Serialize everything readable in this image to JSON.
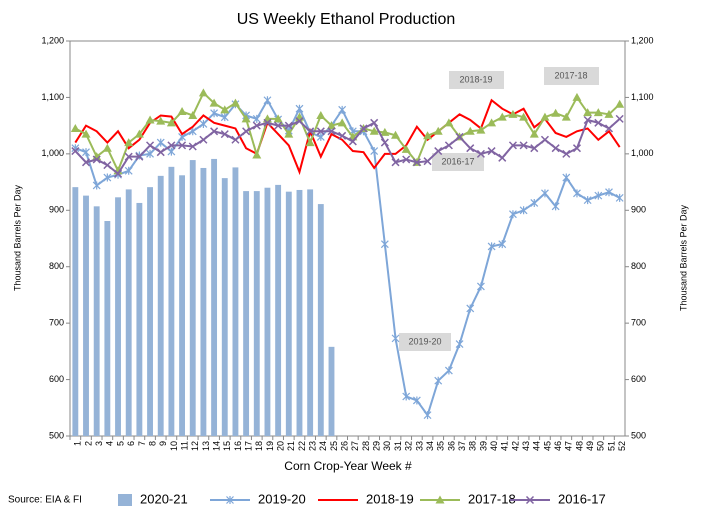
{
  "chart_data": {
    "type": "bar-line",
    "title": "US Weekly Ethanol Production",
    "xlabel": "Corn Crop-Year Week #",
    "ylabel": "Thousand Barrels Per Day",
    "y2label": "Thousand Barrels Per Day",
    "source": "Source: EIA & FI",
    "annotations": [
      "2018-19",
      "2017-18",
      "2016-17",
      "2019-20"
    ],
    "categories": [
      "1",
      "2",
      "3",
      "4",
      "5",
      "6",
      "7",
      "8",
      "9",
      "10",
      "11",
      "12",
      "13",
      "14",
      "15",
      "16",
      "17",
      "18",
      "19",
      "20",
      "21",
      "22",
      "23",
      "24",
      "25",
      "26",
      "27",
      "28",
      "29",
      "30",
      "31",
      "32",
      "33",
      "34",
      "35",
      "36",
      "37",
      "38",
      "39",
      "40",
      "41",
      "42",
      "43",
      "44",
      "45",
      "46",
      "47",
      "48",
      "49",
      "50",
      "51",
      "52"
    ],
    "ylim": [
      500,
      1200
    ],
    "yticks": [
      500,
      600,
      700,
      800,
      900,
      {
        "value": 1000,
        "label": "1,000"
      },
      {
        "value": 1100,
        "label": "1,100"
      },
      {
        "value": 1200,
        "label": "1,200"
      }
    ],
    "y2lim": [
      500,
      1200
    ],
    "y2ticks": [
      500,
      600,
      700,
      800,
      900,
      {
        "value": 1000,
        "label": "1,000"
      },
      {
        "value": 1100,
        "label": "1,100"
      },
      {
        "value": 1200,
        "label": "1,200"
      }
    ],
    "grid": false,
    "series": [
      {
        "name": "2020-21",
        "type": "bar",
        "color": "#95b3d7",
        "values": [
          941,
          926,
          907,
          881,
          923,
          937,
          913,
          941,
          961,
          977,
          962,
          989,
          975,
          991,
          957,
          976,
          934,
          934,
          940,
          945,
          933,
          936,
          937,
          911,
          658,
          null,
          null,
          null,
          null,
          null,
          null,
          null,
          null,
          null,
          null,
          null,
          null,
          null,
          null,
          null,
          null,
          null,
          null,
          null,
          null,
          null,
          null,
          null,
          null,
          null,
          null,
          null
        ]
      },
      {
        "name": "2019-20",
        "type": "line",
        "marker": "star",
        "color": "#7ea6d8",
        "values": [
          1010,
          1003,
          944,
          958,
          963,
          970,
          997,
          1000,
          1020,
          1004,
          1030,
          1040,
          1053,
          1072,
          1065,
          1088,
          1068,
          1062,
          1095,
          1061,
          1041,
          1080,
          1038,
          1030,
          1050,
          1078,
          1040,
          1040,
          1005,
          840,
          673,
          570,
          563,
          537,
          598,
          616,
          663,
          726,
          765,
          836,
          840,
          893,
          900,
          913,
          930,
          907,
          958,
          930,
          918,
          926,
          932,
          922
        ]
      },
      {
        "name": "2018-19",
        "type": "line",
        "marker": "none",
        "color": "#ff0000",
        "values": [
          1020,
          1050,
          1040,
          1020,
          1040,
          1010,
          1025,
          1055,
          1068,
          1066,
          1035,
          1048,
          1068,
          1055,
          1050,
          1045,
          1010,
          1000,
          1055,
          1035,
          1015,
          968,
          1040,
          995,
          1035,
          1025,
          1005,
          1003,
          975,
          1000,
          1000,
          1015,
          1048,
          1025,
          1040,
          1055,
          1070,
          1060,
          1045,
          1095,
          1080,
          1070,
          1080,
          1047,
          1062,
          1037,
          1030,
          1040,
          1045,
          1025,
          1040,
          1012
        ]
      },
      {
        "name": "2017-18",
        "type": "line",
        "marker": "triangle",
        "color": "#9bbb59",
        "values": [
          1045,
          1035,
          995,
          1010,
          970,
          1020,
          1035,
          1060,
          1058,
          1055,
          1075,
          1068,
          1108,
          1090,
          1078,
          1090,
          1062,
          998,
          1062,
          1062,
          1035,
          1065,
          1020,
          1068,
          1050,
          1055,
          1030,
          1045,
          1040,
          1038,
          1033,
          1008,
          985,
          1032,
          1040,
          1055,
          1030,
          1040,
          1042,
          1055,
          1065,
          1070,
          1065,
          1035,
          1065,
          1072,
          1065,
          1100,
          1073,
          1073,
          1070,
          1088
        ]
      },
      {
        "name": "2016-17",
        "type": "line",
        "marker": "x",
        "color": "#8064a2",
        "values": [
          1005,
          985,
          990,
          980,
          965,
          995,
          995,
          1015,
          1003,
          1015,
          1015,
          1013,
          1025,
          1040,
          1035,
          1025,
          1040,
          1050,
          1055,
          1050,
          1050,
          1058,
          1040,
          1040,
          1040,
          1032,
          1022,
          1045,
          1055,
          1020,
          985,
          990,
          985,
          987,
          1005,
          1015,
          1030,
          1010,
          1000,
          1005,
          993,
          1015,
          1015,
          1010,
          1025,
          1010,
          1000,
          1010,
          1060,
          1055,
          1045,
          1062
        ]
      }
    ]
  }
}
